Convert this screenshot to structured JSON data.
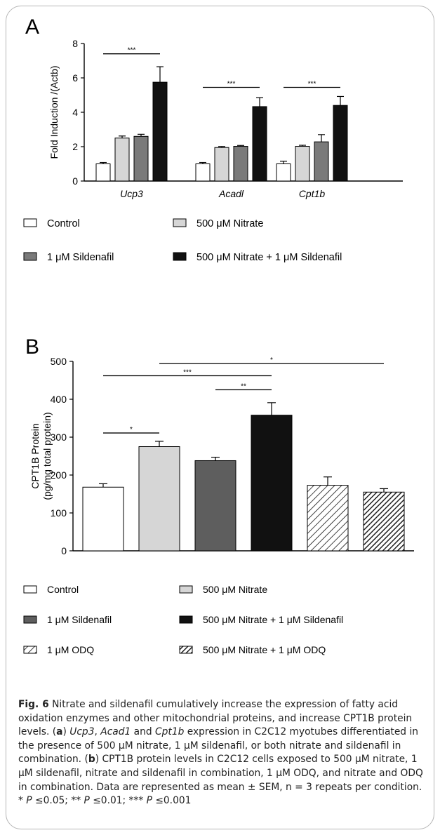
{
  "panel_a_letter": "A",
  "panel_b_letter": "B",
  "caption": {
    "fig_label": "Fig. 6",
    "text_1": " Nitrate and sildenafil cumulatively increase the expression of fatty acid oxidation enzymes and other mitochondrial proteins, and increase CPT1B protein levels. (",
    "a": "a",
    "text_2": ") ",
    "gene_1": "Ucp3",
    "sep_1": ", ",
    "gene_2": "Acad1",
    "sep_2": " and ",
    "gene_3": "Cpt1b",
    "text_3": " expression in C2C12 myotubes differentiated in the presence of 500 μM nitrate, 1 μM sildenafil, or both nitrate and sildenafil in combination. (",
    "b": "b",
    "text_4": ") CPT1B protein levels in C2C12 cells exposed to 500 μM nitrate, 1 μM sildenafil, nitrate and sildenafil in combination, 1 μM ODQ, and nitrate and ODQ in combination. Data are represented as mean ± SEM, n = 3 repeats per condition. * ",
    "p1": "P",
    "t1": " ≤0.05; ** ",
    "p2": "P",
    "t2": " ≤0.01; *** ",
    "p3": "P",
    "t3": " ≤0.001"
  },
  "chart_data": [
    {
      "type": "bar",
      "panel": "A",
      "ylabel": "Fold Induction /(Actb)",
      "ylim": [
        0,
        8
      ],
      "yticks": [
        0,
        2,
        4,
        6,
        8
      ],
      "categories": [
        "Ucp3",
        "Acadl",
        "Cpt1b"
      ],
      "series": [
        {
          "name": "Control",
          "values": [
            1.0,
            1.0,
            1.0
          ],
          "errors": [
            0.08,
            0.08,
            0.15
          ],
          "fill": "#ffffff"
        },
        {
          "name": "500 μM Nitrate",
          "values": [
            2.5,
            1.95,
            2.02
          ],
          "errors": [
            0.12,
            0.06,
            0.06
          ],
          "fill": "#d6d6d6"
        },
        {
          "name": "1 μM Sildenafil",
          "values": [
            2.6,
            2.02,
            2.28
          ],
          "errors": [
            0.12,
            0.05,
            0.42
          ],
          "fill": "#7a7a7a"
        },
        {
          "name": "500 μM Nitrate + 1 μM Sildenafil",
          "values": [
            5.75,
            4.33,
            4.4
          ],
          "errors": [
            0.9,
            0.52,
            0.52
          ],
          "fill": "#111111"
        }
      ],
      "significance": [
        {
          "category": "Ucp3",
          "label": "***",
          "y": 7.4
        },
        {
          "category": "Acadl",
          "label": "***",
          "y": 5.45
        },
        {
          "category": "Cpt1b",
          "label": "***",
          "y": 5.45
        }
      ],
      "legend": [
        "Control",
        "500 μM Nitrate",
        "1 μM Sildenafil",
        "500 μM Nitrate + 1 μM Sildenafil"
      ]
    },
    {
      "type": "bar",
      "panel": "B",
      "ylabel_line1": "CPT1B Protein",
      "ylabel_line2": "(pg/mg total protein)",
      "ylim": [
        0,
        500
      ],
      "yticks": [
        0,
        100,
        200,
        300,
        400,
        500
      ],
      "categories": [
        "Control",
        "500 μM Nitrate",
        "1 μM Sildenafil",
        "500 μM Nitrate + 1 μM Sildenafil",
        "1 μM ODQ",
        "500 μM Nitrate + 1 μM ODQ"
      ],
      "values": [
        168,
        275,
        238,
        358,
        173,
        155
      ],
      "errors": [
        9,
        14,
        9,
        33,
        22,
        9
      ],
      "fills": [
        "#ffffff",
        "#d6d6d6",
        "#5e5e5e",
        "#111111",
        "hatch-light",
        "hatch-dark"
      ],
      "significance": [
        {
          "from": 0,
          "to": 1,
          "label": "*",
          "y": 311
        },
        {
          "from": 2,
          "to": 3,
          "label": "**",
          "y": 425
        },
        {
          "from": 0,
          "to": 3,
          "label": "***",
          "y": 462
        },
        {
          "from": 1,
          "to": 5,
          "label": "*",
          "y": 494
        }
      ],
      "legend": [
        "Control",
        "500 μM Nitrate",
        "1 μM Sildenafil",
        "500 μM Nitrate + 1 μM Sildenafil",
        "1 μM ODQ",
        "500 μM Nitrate + 1 μM ODQ"
      ]
    }
  ]
}
